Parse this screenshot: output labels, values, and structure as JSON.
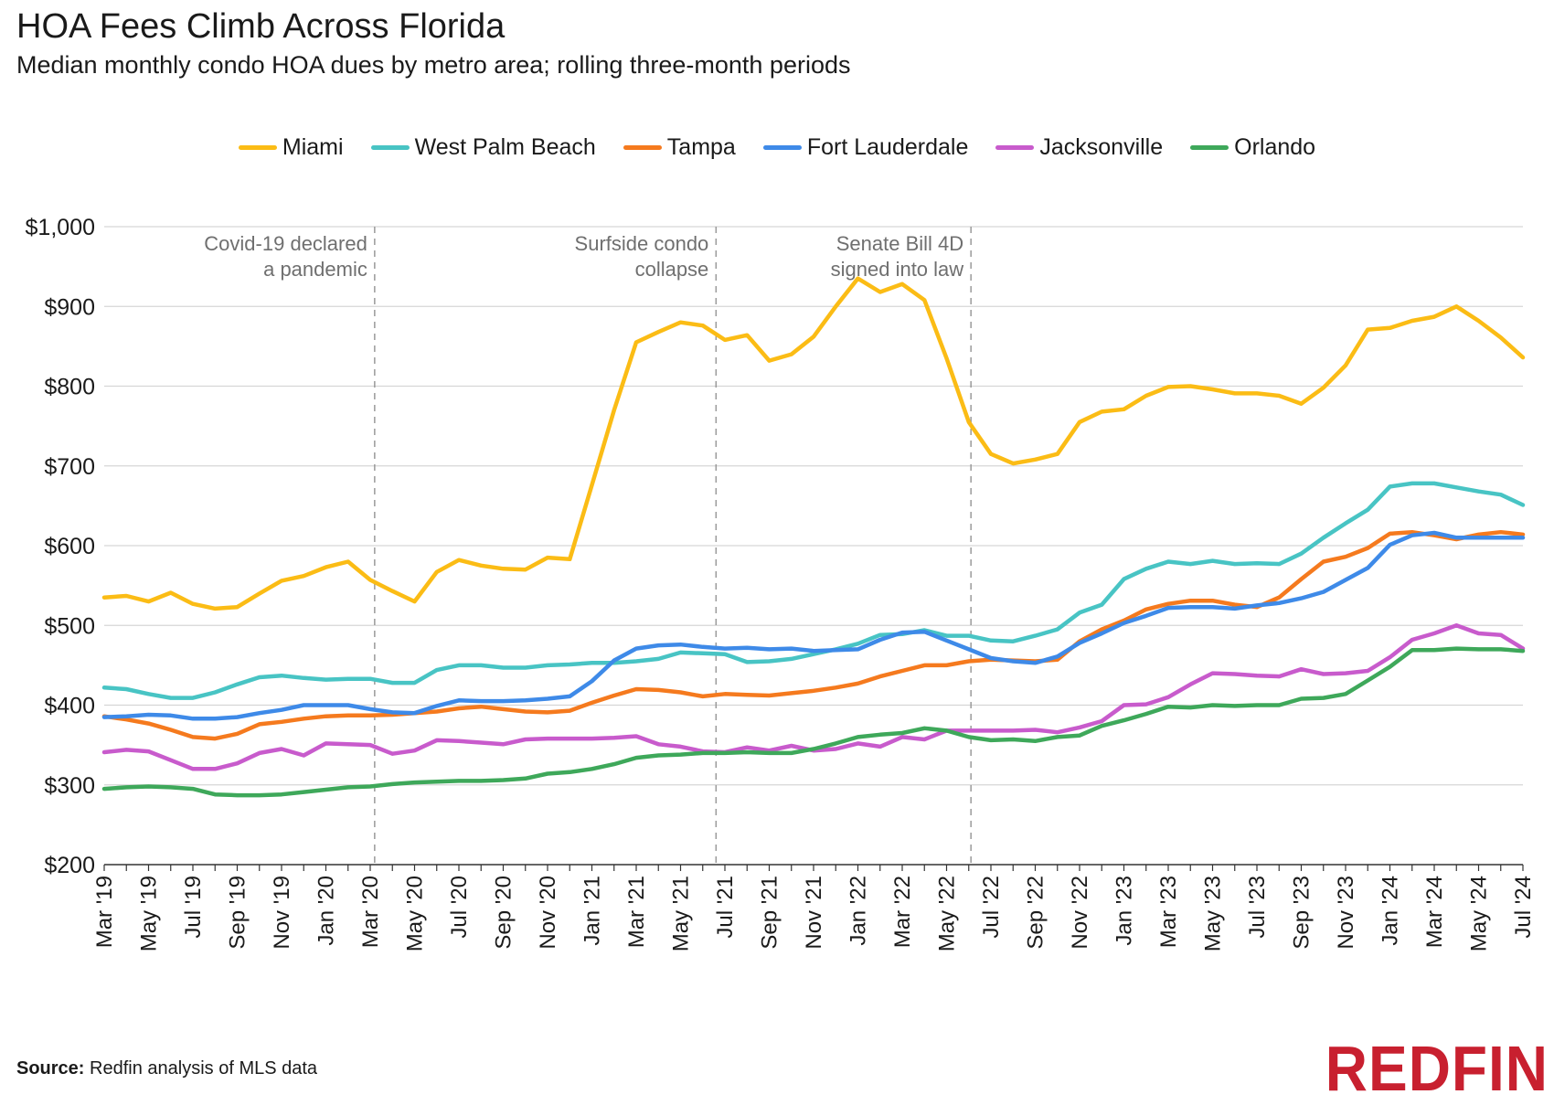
{
  "header": {
    "title": "HOA Fees Climb Across Florida",
    "subtitle": "Median monthly condo HOA dues by metro area; rolling three-month periods"
  },
  "footer": {
    "source_label": "Source:",
    "source_text": "Redfin analysis of MLS data",
    "logo": "REDFIN"
  },
  "chart_data": {
    "type": "line",
    "title": "HOA Fees Climb Across Florida",
    "xlabel": "",
    "ylabel": "",
    "ylim": [
      200,
      1000
    ],
    "yticks": [
      200,
      300,
      400,
      500,
      600,
      700,
      800,
      900,
      1000
    ],
    "ytick_labels": [
      "$200",
      "$300",
      "$400",
      "$500",
      "$600",
      "$700",
      "$800",
      "$900",
      "$1,000"
    ],
    "grid": true,
    "legend_position": "top",
    "x": [
      "Mar '19",
      "Apr '19",
      "May '19",
      "Jun '19",
      "Jul '19",
      "Aug '19",
      "Sep '19",
      "Oct '19",
      "Nov '19",
      "Dec '19",
      "Jan '20",
      "Feb '20",
      "Mar '20",
      "Apr '20",
      "May '20",
      "Jun '20",
      "Jul '20",
      "Aug '20",
      "Sep '20",
      "Oct '20",
      "Nov '20",
      "Dec '20",
      "Jan '21",
      "Feb '21",
      "Mar '21",
      "Apr '21",
      "May '21",
      "Jun '21",
      "Jul '21",
      "Aug '21",
      "Sep '21",
      "Oct '21",
      "Nov '21",
      "Dec '21",
      "Jan '22",
      "Feb '22",
      "Mar '22",
      "Apr '22",
      "May '22",
      "Jun '22",
      "Jul '22",
      "Aug '22",
      "Sep '22",
      "Oct '22",
      "Nov '22",
      "Dec '22",
      "Jan '23",
      "Feb '23",
      "Mar '23",
      "Apr '23",
      "May '23",
      "Jun '23",
      "Jul '23",
      "Aug '23",
      "Sep '23",
      "Oct '23",
      "Nov '23",
      "Dec '23",
      "Jan '24",
      "Feb '24",
      "Mar '24",
      "Apr '24",
      "May '24",
      "Jun '24",
      "Jul '24"
    ],
    "x_tick_labels": [
      "Mar '19",
      "May '19",
      "Jul '19",
      "Sep '19",
      "Nov '19",
      "Jan '20",
      "Mar '20",
      "May '20",
      "Jul '20",
      "Sep '20",
      "Nov '20",
      "Jan '21",
      "Mar '21",
      "May '21",
      "Jul '21",
      "Sep '21",
      "Nov '21",
      "Jan '22",
      "Mar '22",
      "May '22",
      "Jul '22",
      "Sep '22",
      "Nov '22",
      "Jan '23",
      "Mar '23",
      "May '23",
      "Jul '23",
      "Sep '23",
      "Nov '23",
      "Jan '24",
      "Mar '24",
      "May '24",
      "Jul '24"
    ],
    "annotations": [
      {
        "lines": [
          "Covid-19 declared",
          "a pandemic"
        ],
        "x_index": 12.2
      },
      {
        "lines": [
          "Surfside condo",
          "collapse"
        ],
        "x_index": 27.6
      },
      {
        "lines": [
          "Senate Bill 4D",
          "signed into law"
        ],
        "x_index": 39.1
      }
    ],
    "series": [
      {
        "name": "Miami",
        "color": "#FBBC15",
        "values": [
          535,
          537,
          530,
          541,
          527,
          521,
          523,
          540,
          556,
          562,
          573,
          580,
          557,
          543,
          530,
          567,
          582,
          575,
          571,
          570,
          585,
          583,
          676,
          770,
          855,
          868,
          880,
          876,
          858,
          864,
          832,
          840,
          862,
          900,
          935,
          918,
          928,
          908,
          835,
          755,
          715,
          703,
          708,
          715,
          755,
          768,
          771,
          788,
          799,
          800,
          796,
          791,
          791,
          788,
          778,
          798,
          826,
          871,
          873,
          882,
          887,
          900,
          882,
          861,
          836
        ]
      },
      {
        "name": "West Palm Beach",
        "color": "#48C4C4",
        "values": [
          422,
          420,
          414,
          409,
          409,
          416,
          426,
          435,
          437,
          434,
          432,
          433,
          433,
          428,
          428,
          444,
          450,
          450,
          447,
          447,
          450,
          451,
          453,
          453,
          455,
          458,
          466,
          465,
          464,
          454,
          455,
          458,
          464,
          470,
          477,
          488,
          489,
          494,
          487,
          487,
          481,
          480,
          487,
          495,
          516,
          526,
          558,
          571,
          580,
          577,
          581,
          577,
          578,
          577,
          590,
          610,
          628,
          645,
          674,
          678,
          678,
          673,
          668,
          664,
          651
        ]
      },
      {
        "name": "Tampa",
        "color": "#F57A1E",
        "values": [
          386,
          382,
          377,
          369,
          360,
          358,
          364,
          376,
          379,
          383,
          386,
          387,
          387,
          388,
          390,
          392,
          396,
          398,
          395,
          392,
          391,
          393,
          403,
          412,
          420,
          419,
          416,
          411,
          414,
          413,
          412,
          415,
          418,
          422,
          427,
          436,
          443,
          450,
          450,
          455,
          457,
          456,
          455,
          457,
          480,
          495,
          506,
          520,
          527,
          531,
          531,
          526,
          523,
          535,
          558,
          580,
          586,
          597,
          615,
          617,
          613,
          608,
          614,
          617,
          614
        ]
      },
      {
        "name": "Fort Lauderdale",
        "color": "#3E8AE8",
        "values": [
          385,
          386,
          388,
          387,
          383,
          383,
          385,
          390,
          394,
          400,
          400,
          400,
          395,
          391,
          390,
          399,
          406,
          405,
          405,
          406,
          408,
          411,
          430,
          456,
          471,
          475,
          476,
          473,
          471,
          472,
          470,
          471,
          468,
          469,
          470,
          482,
          491,
          492,
          481,
          470,
          459,
          455,
          453,
          461,
          478,
          490,
          503,
          512,
          522,
          523,
          523,
          521,
          525,
          528,
          534,
          542,
          557,
          572,
          601,
          613,
          616,
          610,
          610,
          610,
          610
        ]
      },
      {
        "name": "Jacksonville",
        "color": "#C85BCC",
        "values": [
          341,
          344,
          342,
          331,
          320,
          320,
          327,
          340,
          345,
          337,
          352,
          351,
          350,
          339,
          343,
          356,
          355,
          353,
          351,
          357,
          358,
          358,
          358,
          359,
          361,
          351,
          348,
          342,
          341,
          347,
          343,
          349,
          343,
          345,
          352,
          348,
          360,
          357,
          368,
          368,
          368,
          368,
          369,
          366,
          372,
          380,
          400,
          401,
          410,
          426,
          440,
          439,
          437,
          436,
          445,
          439,
          440,
          443,
          460,
          482,
          490,
          500,
          490,
          488,
          471
        ]
      },
      {
        "name": "Orlando",
        "color": "#3EA85A",
        "values": [
          295,
          297,
          298,
          297,
          295,
          288,
          287,
          287,
          288,
          291,
          294,
          297,
          298,
          301,
          303,
          304,
          305,
          305,
          306,
          308,
          314,
          316,
          320,
          326,
          334,
          337,
          338,
          340,
          340,
          341,
          340,
          340,
          345,
          352,
          360,
          363,
          365,
          371,
          368,
          360,
          356,
          357,
          355,
          360,
          362,
          374,
          381,
          389,
          398,
          397,
          400,
          399,
          400,
          400,
          408,
          409,
          414,
          431,
          448,
          469,
          469,
          471,
          470,
          470,
          468
        ]
      }
    ]
  }
}
